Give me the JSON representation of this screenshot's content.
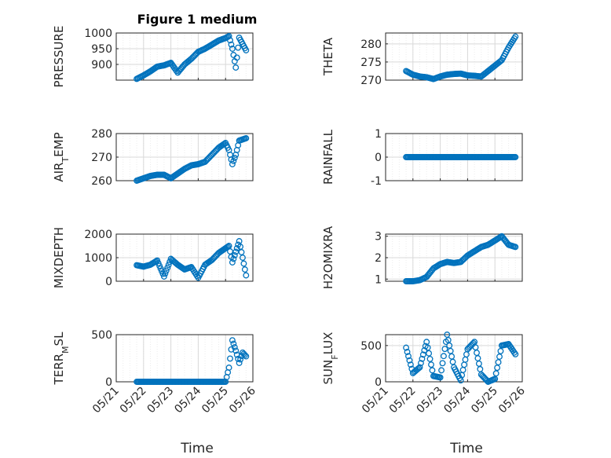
{
  "figure": {
    "title": "Figure 1 medium",
    "xlabel": "Time",
    "marker_color": "#0072BD",
    "x_tick_labels": [
      "05/21",
      "05/22",
      "05/23",
      "05/24",
      "05/25",
      "05/26"
    ]
  },
  "chart_data": [
    {
      "type": "scatter",
      "ylabel": "PRESSURE",
      "title": "Figure 1 medium",
      "xlim": [
        "05/21",
        "05/26"
      ],
      "ylim": [
        850,
        1000
      ],
      "yticks": [
        900,
        950,
        1000
      ],
      "grid": true,
      "x": [
        "05/21 18:00",
        "05/22 00:00",
        "05/22 06:00",
        "05/22 12:00",
        "05/22 18:00",
        "05/23 00:00",
        "05/23 06:00",
        "05/23 12:00",
        "05/23 18:00",
        "05/24 00:00",
        "05/24 06:00",
        "05/24 12:00",
        "05/24 18:00",
        "05/25 00:00",
        "05/25 03:00",
        "05/25 06:00",
        "05/25 09:00",
        "05/25 12:00",
        "05/25 15:00",
        "05/25 18:00"
      ],
      "y": [
        854,
        865,
        878,
        893,
        897,
        905,
        874,
        900,
        918,
        940,
        950,
        963,
        976,
        984,
        990,
        950,
        890,
        985,
        965,
        945
      ]
    },
    {
      "type": "scatter",
      "ylabel": "THETA",
      "xlim": [
        "05/21",
        "05/26"
      ],
      "ylim": [
        270,
        283
      ],
      "yticks": [
        270,
        275,
        280
      ],
      "grid": true,
      "x": [
        "05/21 18:00",
        "05/22 00:00",
        "05/22 06:00",
        "05/22 12:00",
        "05/22 18:00",
        "05/23 00:00",
        "05/23 06:00",
        "05/23 12:00",
        "05/23 18:00",
        "05/24 00:00",
        "05/24 06:00",
        "05/24 12:00",
        "05/24 18:00",
        "05/25 00:00",
        "05/25 06:00",
        "05/25 12:00",
        "05/25 18:00"
      ],
      "y": [
        272.5,
        271.5,
        271,
        270.8,
        270.3,
        271,
        271.5,
        271.7,
        271.8,
        271.3,
        271.2,
        271,
        272.5,
        274,
        275.5,
        279,
        282
      ]
    },
    {
      "type": "scatter",
      "ylabel": "AIR_TEMP",
      "xlim": [
        "05/21",
        "05/26"
      ],
      "ylim": [
        260,
        280
      ],
      "yticks": [
        260,
        270,
        280
      ],
      "grid": true,
      "x": [
        "05/21 18:00",
        "05/22 00:00",
        "05/22 06:00",
        "05/22 12:00",
        "05/22 18:00",
        "05/23 00:00",
        "05/23 06:00",
        "05/23 12:00",
        "05/23 18:00",
        "05/24 00:00",
        "05/24 06:00",
        "05/24 12:00",
        "05/24 18:00",
        "05/25 00:00",
        "05/25 03:00",
        "05/25 06:00",
        "05/25 09:00",
        "05/25 12:00",
        "05/25 18:00"
      ],
      "y": [
        260,
        261,
        262,
        262.5,
        262.5,
        261,
        263,
        265,
        266.5,
        267,
        268,
        271,
        274,
        276,
        273,
        267,
        271,
        277,
        278
      ]
    },
    {
      "type": "scatter",
      "ylabel": "RAINFALL",
      "xlim": [
        "05/21",
        "05/26"
      ],
      "ylim": [
        -1,
        1
      ],
      "yticks": [
        -1,
        0,
        1
      ],
      "grid": true,
      "x": [
        "05/21 18:00",
        "05/22 06:00",
        "05/22 18:00",
        "05/23 06:00",
        "05/23 18:00",
        "05/24 06:00",
        "05/24 18:00",
        "05/25 06:00",
        "05/25 18:00"
      ],
      "y": [
        0,
        0,
        0,
        0,
        0,
        0,
        0,
        0,
        0
      ]
    },
    {
      "type": "scatter",
      "ylabel": "MIXDEPTH",
      "xlim": [
        "05/21",
        "05/26"
      ],
      "ylim": [
        0,
        2000
      ],
      "yticks": [
        0,
        1000,
        2000
      ],
      "grid": true,
      "x": [
        "05/21 18:00",
        "05/22 00:00",
        "05/22 06:00",
        "05/22 12:00",
        "05/22 18:00",
        "05/23 00:00",
        "05/23 06:00",
        "05/23 12:00",
        "05/23 18:00",
        "05/24 00:00",
        "05/24 06:00",
        "05/24 12:00",
        "05/24 18:00",
        "05/25 00:00",
        "05/25 03:00",
        "05/25 06:00",
        "05/25 12:00",
        "05/25 15:00",
        "05/25 18:00"
      ],
      "y": [
        680,
        620,
        700,
        880,
        200,
        950,
        700,
        500,
        600,
        150,
        700,
        900,
        1200,
        1400,
        1500,
        800,
        1700,
        1000,
        250
      ]
    },
    {
      "type": "scatter",
      "ylabel": "H2OMIXRA",
      "xlim": [
        "05/21",
        "05/26"
      ],
      "ylim": [
        0.9,
        3.1
      ],
      "yticks": [
        1,
        2,
        3
      ],
      "grid": true,
      "x": [
        "05/21 18:00",
        "05/22 00:00",
        "05/22 06:00",
        "05/22 12:00",
        "05/22 18:00",
        "05/23 00:00",
        "05/23 06:00",
        "05/23 12:00",
        "05/23 18:00",
        "05/24 00:00",
        "05/24 06:00",
        "05/24 12:00",
        "05/24 18:00",
        "05/25 00:00",
        "05/25 06:00",
        "05/25 12:00",
        "05/25 18:00"
      ],
      "y": [
        0.9,
        0.9,
        0.95,
        1.1,
        1.5,
        1.7,
        1.8,
        1.75,
        1.8,
        2.1,
        2.3,
        2.5,
        2.6,
        2.8,
        3.0,
        2.6,
        2.5
      ]
    },
    {
      "type": "scatter",
      "ylabel": "TERR_MSL",
      "xlim": [
        "05/21",
        "05/26"
      ],
      "ylim": [
        0,
        500
      ],
      "yticks": [
        0,
        500
      ],
      "grid": true,
      "x": [
        "05/21 18:00",
        "05/22 06:00",
        "05/22 18:00",
        "05/23 06:00",
        "05/23 18:00",
        "05/24 06:00",
        "05/24 18:00",
        "05/25 00:00",
        "05/25 03:00",
        "05/25 06:00",
        "05/25 09:00",
        "05/25 12:00",
        "05/25 15:00",
        "05/25 18:00"
      ],
      "y": [
        0,
        0,
        0,
        0,
        0,
        0,
        0,
        0,
        150,
        440,
        330,
        200,
        310,
        270
      ]
    },
    {
      "type": "scatter",
      "ylabel": "SUN_FLUX",
      "xlim": [
        "05/21",
        "05/26"
      ],
      "ylim": [
        0,
        650
      ],
      "yticks": [
        0,
        500
      ],
      "grid": true,
      "x": [
        "05/21 18:00",
        "05/22 00:00",
        "05/22 06:00",
        "05/22 12:00",
        "05/22 18:00",
        "05/23 00:00",
        "05/23 06:00",
        "05/23 12:00",
        "05/23 18:00",
        "05/24 00:00",
        "05/24 06:00",
        "05/24 12:00",
        "05/24 18:00",
        "05/25 00:00",
        "05/25 06:00",
        "05/25 12:00",
        "05/25 18:00"
      ],
      "y": [
        470,
        120,
        200,
        550,
        80,
        60,
        650,
        200,
        20,
        450,
        550,
        100,
        0,
        40,
        500,
        520,
        380
      ]
    }
  ]
}
